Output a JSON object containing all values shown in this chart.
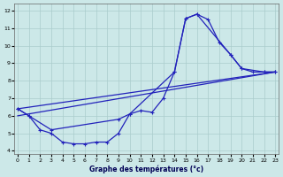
{
  "xlabel": "Graphe des températures (°c)",
  "bg_color": "#cce8e8",
  "grid_color": "#aacccc",
  "line_color": "#2222bb",
  "xlim": [
    -0.3,
    23.3
  ],
  "ylim": [
    3.8,
    12.4
  ],
  "xticks": [
    0,
    1,
    2,
    3,
    4,
    5,
    6,
    7,
    8,
    9,
    10,
    11,
    12,
    13,
    14,
    15,
    16,
    17,
    18,
    19,
    20,
    21,
    22,
    23
  ],
  "yticks": [
    4,
    5,
    6,
    7,
    8,
    9,
    10,
    11,
    12
  ],
  "curve1_x": [
    0,
    1,
    2,
    3,
    4,
    5,
    6,
    7,
    8,
    9,
    10,
    11,
    12,
    13,
    14,
    15,
    16,
    17,
    18,
    19,
    20,
    21,
    22,
    23
  ],
  "curve1_y": [
    6.4,
    6.0,
    5.2,
    5.0,
    4.5,
    4.4,
    4.4,
    4.5,
    4.5,
    5.0,
    6.1,
    6.3,
    6.2,
    7.0,
    8.5,
    11.55,
    11.8,
    11.5,
    10.2,
    9.5,
    8.7,
    8.5,
    8.5,
    8.5
  ],
  "curve2_x": [
    0,
    1,
    3,
    9,
    10,
    14,
    15,
    16,
    19,
    20,
    22,
    23
  ],
  "curve2_y": [
    6.4,
    6.0,
    5.2,
    5.8,
    6.1,
    8.5,
    11.55,
    11.8,
    9.5,
    8.7,
    8.5,
    8.5
  ],
  "line3_x": [
    0,
    23
  ],
  "line3_y": [
    6.4,
    8.5
  ],
  "line4_x": [
    0,
    23
  ],
  "line4_y": [
    6.0,
    8.5
  ]
}
